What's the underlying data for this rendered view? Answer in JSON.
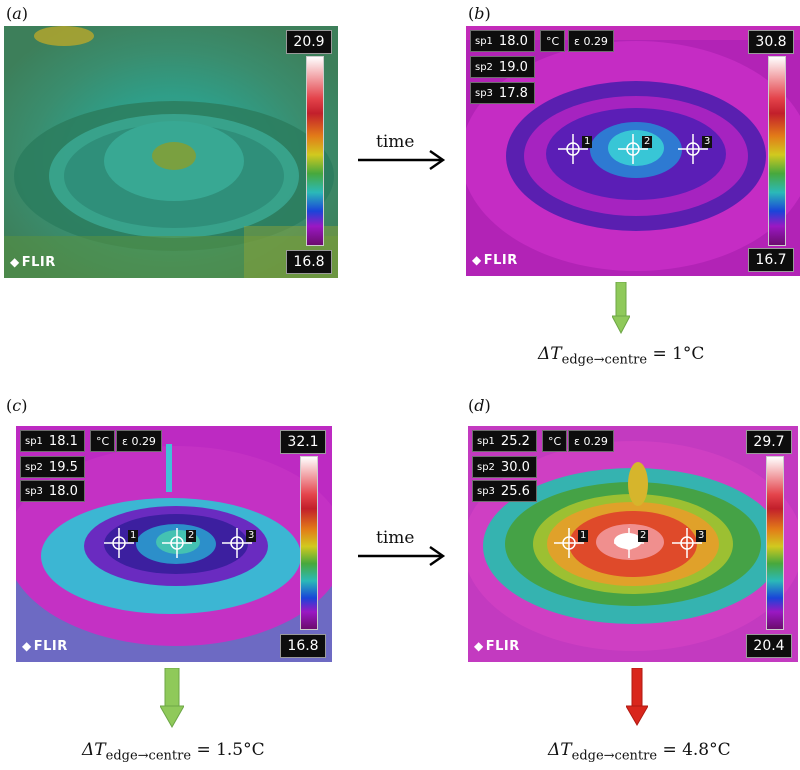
{
  "panels": [
    {
      "label": "a",
      "scale_max": "20.9",
      "scale_min": "16.8",
      "logo": "FLIR"
    },
    {
      "label": "b",
      "scale_max": "30.8",
      "scale_min": "16.7",
      "logo": "FLIR",
      "spots": [
        {
          "name": "sp1",
          "value": "18.0"
        },
        {
          "name": "sp2",
          "value": "19.0"
        },
        {
          "name": "sp3",
          "value": "17.8"
        }
      ],
      "unit": "°C",
      "emissivity": "ε 0.29"
    },
    {
      "label": "c",
      "scale_max": "32.1",
      "scale_min": "16.8",
      "logo": "FLIR",
      "spots": [
        {
          "name": "sp1",
          "value": "18.1"
        },
        {
          "name": "sp2",
          "value": "19.5"
        },
        {
          "name": "sp3",
          "value": "18.0"
        }
      ],
      "unit": "°C",
      "emissivity": "ε 0.29"
    },
    {
      "label": "d",
      "scale_max": "29.7",
      "scale_min": "20.4",
      "logo": "FLIR",
      "spots": [
        {
          "name": "sp1",
          "value": "25.2"
        },
        {
          "name": "sp2",
          "value": "30.0"
        },
        {
          "name": "sp3",
          "value": "25.6"
        }
      ],
      "unit": "°C",
      "emissivity": "ε 0.29"
    }
  ],
  "crosshair_numbers": [
    "1",
    "2",
    "3"
  ],
  "time_labels": [
    "time",
    "time"
  ],
  "deltas": [
    {
      "symbol": "ΔT",
      "subscript": "edge→centre",
      "value": "= 1°C",
      "arrow_color": "#8fc95a"
    },
    {
      "symbol": "ΔT",
      "subscript": "edge→centre",
      "value": "= 1.5°C",
      "arrow_color": "#8fc95a"
    },
    {
      "symbol": "ΔT",
      "subscript": "edge→centre",
      "value": "= 4.8°C",
      "arrow_color": "#d9261c"
    }
  ]
}
